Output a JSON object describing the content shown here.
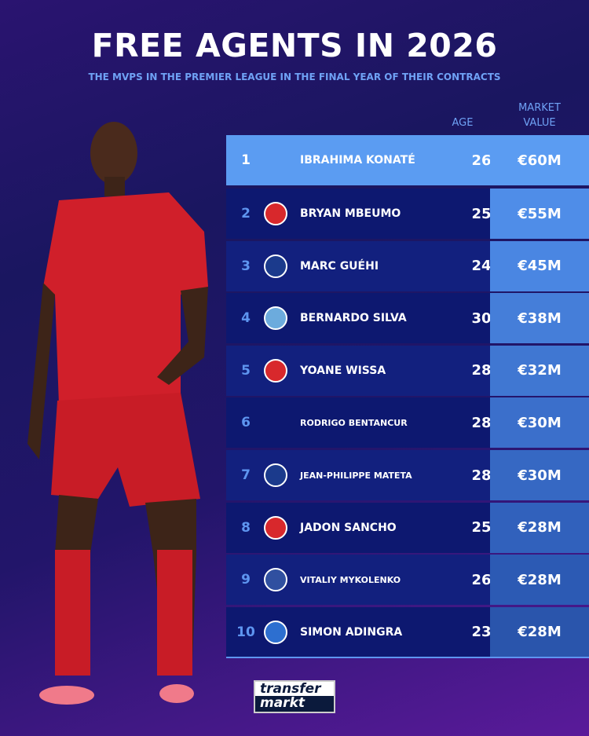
{
  "title": "FREE AGENTS IN 2026",
  "subtitle": "THE MVPS IN THE PREMIER LEAGUE IN THE FINAL YEAR OF THEIR CONTRACTS",
  "headers": {
    "age": "AGE",
    "market_value_1": "MARKET",
    "market_value_2": "VALUE"
  },
  "rows": [
    {
      "rank": "1",
      "club_icon": "liverpool-crest",
      "name": "IBRAHIMA KONATÉ",
      "age": "26",
      "value": "€60M"
    },
    {
      "rank": "2",
      "club_icon": "brentford-crest",
      "name": "BRYAN MBEUMO",
      "age": "25",
      "value": "€55M"
    },
    {
      "rank": "3",
      "club_icon": "crystal-palace-crest",
      "name": "MARC GUÉHI",
      "age": "24",
      "value": "€45M"
    },
    {
      "rank": "4",
      "club_icon": "manchester-city-crest",
      "name": "BERNARDO SILVA",
      "age": "30",
      "value": "€38M"
    },
    {
      "rank": "5",
      "club_icon": "brentford-crest",
      "name": "YOANE WISSA",
      "age": "28",
      "value": "€32M"
    },
    {
      "rank": "6",
      "club_icon": "tottenham-crest",
      "name": "RODRIGO BENTANCUR",
      "age": "28",
      "value": "€30M"
    },
    {
      "rank": "7",
      "club_icon": "crystal-palace-crest",
      "name": "JEAN-PHILIPPE MATETA",
      "age": "28",
      "value": "€30M"
    },
    {
      "rank": "8",
      "club_icon": "manchester-united-crest",
      "name": "JADON SANCHO",
      "age": "25",
      "value": "€28M"
    },
    {
      "rank": "9",
      "club_icon": "everton-crest",
      "name": "VITALIY MYKOLENKO",
      "age": "26",
      "value": "€28M"
    },
    {
      "rank": "10",
      "club_icon": "brighton-crest",
      "name": "SIMON ADINGRA",
      "age": "23",
      "value": "€28M"
    }
  ],
  "colors": {
    "highlight": "#5b9cf2",
    "accent": "#6fa2f5",
    "row_dark": "#0d1870"
  },
  "logo": {
    "line1": "transfer",
    "line2": "markt"
  }
}
